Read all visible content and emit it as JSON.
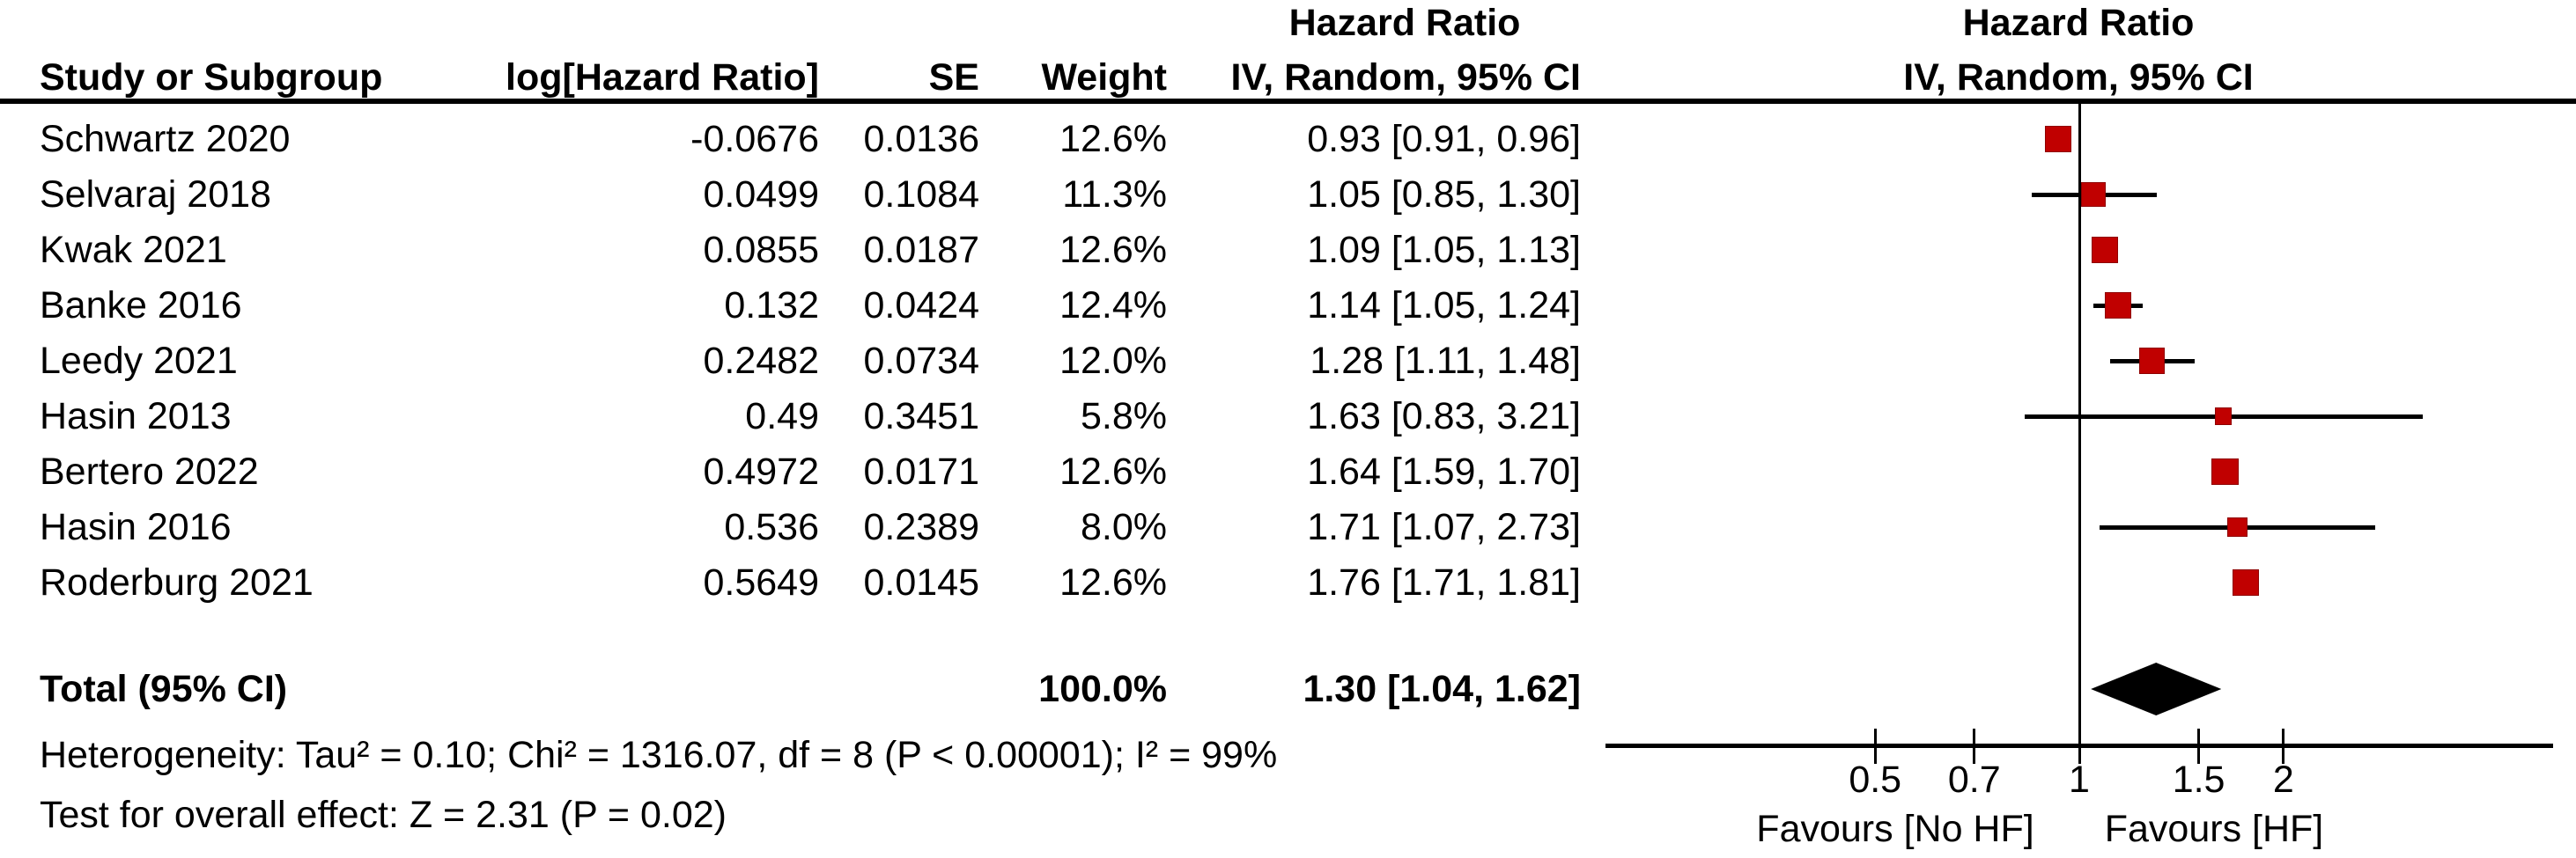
{
  "accent_color": "#c00000",
  "table": {
    "header": {
      "study": "Study or Subgroup",
      "log_hr": "log[Hazard Ratio]",
      "se": "SE",
      "weight": "Weight",
      "effect_group": "Hazard Ratio",
      "effect_method": "IV, Random, 95% CI"
    }
  },
  "plot_header": {
    "line1": "Hazard Ratio",
    "line2": "IV, Random, 95% CI"
  },
  "chart_data": {
    "type": "forest",
    "x_scale": "log10",
    "axis_range": [
      0.2,
      5
    ],
    "axis_ticks": [
      "0.5",
      "0.7",
      "1",
      "1.5",
      "2"
    ],
    "null_line": 1,
    "marker_color": "#c00000",
    "studies": [
      {
        "study": "Schwartz 2020",
        "log_hr": "-0.0676",
        "se": "0.0136",
        "weight": "12.6%",
        "weight_pct": 12.6,
        "ci_text": "0.93 [0.91, 0.96]",
        "hr": 0.93,
        "lo": 0.91,
        "hi": 0.96
      },
      {
        "study": "Selvaraj 2018",
        "log_hr": "0.0499",
        "se": "0.1084",
        "weight": "11.3%",
        "weight_pct": 11.3,
        "ci_text": "1.05 [0.85, 1.30]",
        "hr": 1.05,
        "lo": 0.85,
        "hi": 1.3
      },
      {
        "study": "Kwak 2021",
        "log_hr": "0.0855",
        "se": "0.0187",
        "weight": "12.6%",
        "weight_pct": 12.6,
        "ci_text": "1.09 [1.05, 1.13]",
        "hr": 1.09,
        "lo": 1.05,
        "hi": 1.13
      },
      {
        "study": "Banke 2016",
        "log_hr": "0.132",
        "se": "0.0424",
        "weight": "12.4%",
        "weight_pct": 12.4,
        "ci_text": "1.14 [1.05, 1.24]",
        "hr": 1.14,
        "lo": 1.05,
        "hi": 1.24
      },
      {
        "study": "Leedy 2021",
        "log_hr": "0.2482",
        "se": "0.0734",
        "weight": "12.0%",
        "weight_pct": 12.0,
        "ci_text": "1.28 [1.11, 1.48]",
        "hr": 1.28,
        "lo": 1.11,
        "hi": 1.48
      },
      {
        "study": "Hasin 2013",
        "log_hr": "0.49",
        "se": "0.3451",
        "weight": "5.8%",
        "weight_pct": 5.8,
        "ci_text": "1.63 [0.83, 3.21]",
        "hr": 1.63,
        "lo": 0.83,
        "hi": 3.21
      },
      {
        "study": "Bertero 2022",
        "log_hr": "0.4972",
        "se": "0.0171",
        "weight": "12.6%",
        "weight_pct": 12.6,
        "ci_text": "1.64 [1.59, 1.70]",
        "hr": 1.64,
        "lo": 1.59,
        "hi": 1.7
      },
      {
        "study": "Hasin 2016",
        "log_hr": "0.536",
        "se": "0.2389",
        "weight": "8.0%",
        "weight_pct": 8.0,
        "ci_text": "1.71 [1.07, 2.73]",
        "hr": 1.71,
        "lo": 1.07,
        "hi": 2.73
      },
      {
        "study": "Roderburg 2021",
        "log_hr": "0.5649",
        "se": "0.0145",
        "weight": "12.6%",
        "weight_pct": 12.6,
        "ci_text": "1.76 [1.71, 1.81]",
        "hr": 1.76,
        "lo": 1.71,
        "hi": 1.81
      }
    ],
    "total": {
      "label": "Total (95% CI)",
      "weight": "100.0%",
      "ci_text": "1.30 [1.04, 1.62]",
      "hr": 1.3,
      "lo": 1.04,
      "hi": 1.62
    },
    "footer": {
      "heterogeneity": "Heterogeneity: Tau² = 0.10; Chi² = 1316.07, df = 8 (P < 0.00001); I² = 99%",
      "overall_effect": "Test for overall effect: Z = 2.31 (P = 0.02)",
      "favours_left": "Favours [No HF]",
      "favours_right": "Favours [HF]"
    }
  }
}
